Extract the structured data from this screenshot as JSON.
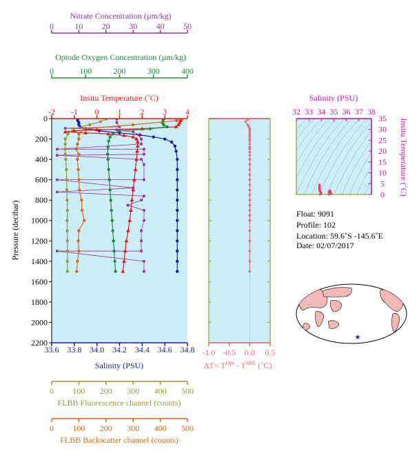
{
  "colors": {
    "nitrate": "#993399",
    "oxygen": "#1a8c3a",
    "temperature": "#ee1111",
    "salinity": "#1a1aaa",
    "fluorescence": "#999933",
    "backscatter": "#dd6611",
    "delta": "#ee6677",
    "ts_axis": "#cc11aa",
    "plot_bg": "#cceef8",
    "map_land": "#f4b8b8",
    "float_marker": "#1a1acc"
  },
  "axes": {
    "nitrate_title": "Nitrate Concentration (µm/kg)",
    "oxygen_title": "Optode Oxygen Concentration (µm/kg)",
    "temperature_title": "Insitu Temperature (˚C)",
    "salinity_title": "Salinity (PSU)",
    "pressure_title": "Pressure (decibar)",
    "fluorescence_title": "FLBB Fluorescence channel (counts)",
    "backscatter_title": "FLBB Backscatter channel (counts)",
    "ts_salinity_title": "Salinity (PSU)",
    "ts_temperature_title": "Insitu Temperature (˚C)",
    "delta_title_prefix": "ΔT= T",
    "delta_sup1": "Opt",
    "delta_mid": " - T",
    "delta_sup2": "SBE",
    "delta_suffix": " (˚C)"
  },
  "info": {
    "float": "Float:  9091",
    "profile": "Profile:  102",
    "location": "Location:  59.6˚S  -145.6˚E",
    "date": "Date:  02/07/2017"
  },
  "chart_data": [
    {
      "type": "line",
      "name": "profile",
      "ylabel": "Pressure (decibar)",
      "ylim": [
        2200,
        0
      ],
      "y_ticks": [
        0,
        200,
        400,
        600,
        800,
        1000,
        1200,
        1400,
        1600,
        1800,
        2000,
        2200
      ],
      "x_axes": {
        "salinity": {
          "range": [
            33.6,
            34.8
          ],
          "ticks": [
            "33.6",
            "33.8",
            "34.0",
            "34.2",
            "34.4",
            "34.6",
            "34.8"
          ]
        },
        "temperature": {
          "range": [
            -2,
            4
          ],
          "ticks": [
            "-2",
            "-1",
            "0",
            "1",
            "2",
            "3",
            "4"
          ]
        },
        "oxygen": {
          "range": [
            0,
            400
          ],
          "ticks": [
            "0",
            "100",
            "200",
            "300",
            "400"
          ]
        },
        "nitrate": {
          "range": [
            0,
            50
          ],
          "ticks": [
            "0",
            "10",
            "20",
            "30",
            "40",
            "50"
          ]
        },
        "fluorescence": {
          "range": [
            0,
            500
          ],
          "ticks": [
            "0",
            "100",
            "200",
            "300",
            "400",
            "500"
          ]
        },
        "backscatter": {
          "range": [
            0,
            500
          ],
          "ticks": [
            "0",
            "100",
            "200",
            "300",
            "400",
            "500"
          ]
        }
      },
      "series": [
        {
          "key": "salinity",
          "axis": "salinity",
          "points": [
            [
              33.83,
              5
            ],
            [
              33.83,
              20
            ],
            [
              33.84,
              40
            ],
            [
              33.84,
              60
            ],
            [
              33.85,
              80
            ],
            [
              33.9,
              100
            ],
            [
              34.02,
              120
            ],
            [
              34.2,
              140
            ],
            [
              34.38,
              160
            ],
            [
              34.5,
              180
            ],
            [
              34.6,
              200
            ],
            [
              34.66,
              230
            ],
            [
              34.69,
              270
            ],
            [
              34.7,
              320
            ],
            [
              34.71,
              400
            ],
            [
              34.71,
              500
            ],
            [
              34.71,
              600
            ],
            [
              34.71,
              700
            ],
            [
              34.71,
              800
            ],
            [
              34.71,
              900
            ],
            [
              34.71,
              1000
            ],
            [
              34.71,
              1100
            ],
            [
              34.71,
              1200
            ],
            [
              34.71,
              1300
            ],
            [
              34.71,
              1400
            ],
            [
              34.71,
              1500
            ]
          ]
        },
        {
          "key": "temperature",
          "axis": "temperature",
          "points": [
            [
              3.7,
              5
            ],
            [
              3.7,
              20
            ],
            [
              3.65,
              40
            ],
            [
              3.6,
              60
            ],
            [
              3.5,
              80
            ],
            [
              2.0,
              100
            ],
            [
              0.0,
              110
            ],
            [
              -1.0,
              120
            ],
            [
              -1.4,
              130
            ],
            [
              -0.5,
              140
            ],
            [
              0.5,
              150
            ],
            [
              1.2,
              165
            ],
            [
              1.6,
              180
            ],
            [
              1.75,
              200
            ],
            [
              1.8,
              230
            ],
            [
              1.8,
              270
            ],
            [
              1.78,
              320
            ],
            [
              1.75,
              400
            ],
            [
              1.7,
              500
            ],
            [
              1.65,
              600
            ],
            [
              1.6,
              700
            ],
            [
              1.55,
              800
            ],
            [
              1.5,
              900
            ],
            [
              1.45,
              1000
            ],
            [
              1.38,
              1100
            ],
            [
              1.3,
              1200
            ],
            [
              1.25,
              1300
            ],
            [
              1.2,
              1400
            ],
            [
              1.15,
              1500
            ]
          ]
        },
        {
          "key": "oxygen",
          "axis": "oxygen",
          "points": [
            [
              330,
              5
            ],
            [
              328,
              20
            ],
            [
              326,
              40
            ],
            [
              330,
              60
            ],
            [
              340,
              80
            ],
            [
              290,
              100
            ],
            [
              200,
              120
            ],
            [
              180,
              150
            ],
            [
              172,
              180
            ],
            [
              168,
              220
            ],
            [
              166,
              280
            ],
            [
              165,
              350
            ],
            [
              166,
              400
            ],
            [
              168,
              500
            ],
            [
              170,
              600
            ],
            [
              172,
              700
            ],
            [
              174,
              800
            ],
            [
              176,
              900
            ],
            [
              178,
              1000
            ],
            [
              180,
              1100
            ],
            [
              182,
              1200
            ],
            [
              184,
              1300
            ],
            [
              186,
              1400
            ],
            [
              188,
              1500
            ]
          ]
        },
        {
          "key": "nitrate",
          "axis": "nitrate",
          "points": [
            [
              24,
              5
            ],
            [
              24,
              40
            ],
            [
              25,
              80
            ],
            [
              5,
              95
            ],
            [
              24,
              110
            ],
            [
              30,
              130
            ],
            [
              32,
              160
            ],
            [
              33,
              200
            ],
            [
              33,
              250
            ],
            [
              2,
              300
            ],
            [
              34,
              300
            ],
            [
              34,
              350
            ],
            [
              2,
              360
            ],
            [
              33,
              400
            ],
            [
              34,
              450
            ],
            [
              34,
              600
            ],
            [
              2,
              600
            ],
            [
              30,
              680
            ],
            [
              2,
              720
            ],
            [
              34,
              760
            ],
            [
              33,
              800
            ],
            [
              28,
              850
            ],
            [
              34,
              900
            ],
            [
              34,
              1000
            ],
            [
              33,
              1100
            ],
            [
              33,
              1200
            ],
            [
              33,
              1300
            ],
            [
              2,
              1300
            ],
            [
              34,
              1400
            ],
            [
              34,
              1500
            ]
          ]
        },
        {
          "key": "fluorescence",
          "axis": "fluorescence",
          "points": [
            [
              200,
              5
            ],
            [
              180,
              30
            ],
            [
              140,
              60
            ],
            [
              80,
              100
            ],
            [
              60,
              150
            ],
            [
              50,
              200
            ],
            [
              50,
              250
            ],
            [
              50,
              300
            ],
            [
              50,
              350
            ],
            [
              52,
              400
            ],
            [
              54,
              500
            ],
            [
              55,
              600
            ],
            [
              56,
              700
            ],
            [
              57,
              800
            ],
            [
              58,
              900
            ],
            [
              57,
              1000
            ],
            [
              57,
              1100
            ],
            [
              58,
              1200
            ],
            [
              58,
              1300
            ],
            [
              58,
              1400
            ],
            [
              58,
              1500
            ]
          ]
        },
        {
          "key": "backscatter",
          "axis": "backscatter",
          "points": [
            [
              480,
              5
            ],
            [
              460,
              20
            ],
            [
              300,
              60
            ],
            [
              120,
              100
            ],
            [
              100,
              150
            ],
            [
              100,
              200
            ],
            [
              95,
              250
            ],
            [
              90,
              300
            ],
            [
              100,
              350
            ],
            [
              95,
              400
            ],
            [
              98,
              500
            ],
            [
              100,
              600
            ],
            [
              102,
              700
            ],
            [
              110,
              800
            ],
            [
              112,
              900
            ],
            [
              120,
              1000
            ],
            [
              100,
              1100
            ],
            [
              98,
              1200
            ],
            [
              100,
              1300
            ],
            [
              95,
              1400
            ],
            [
              92,
              1500
            ]
          ]
        }
      ]
    },
    {
      "type": "scatter",
      "name": "temperature_difference",
      "xlabel": "ΔT= TOpt - TSBE (˚C)",
      "xlim": [
        -1.0,
        0.5
      ],
      "x_ticks": [
        "-1.0",
        "-0.5",
        "0.0",
        "0.5"
      ],
      "ylim": [
        2200,
        0
      ],
      "points": [
        [
          -0.05,
          10
        ],
        [
          -0.1,
          30
        ],
        [
          -0.05,
          60
        ],
        [
          -0.02,
          80
        ],
        [
          0.0,
          100
        ],
        [
          0.0,
          120
        ],
        [
          0.0,
          140
        ],
        [
          0.0,
          160
        ],
        [
          0.0,
          180
        ],
        [
          0.0,
          200
        ],
        [
          0.0,
          220
        ],
        [
          0.0,
          250
        ],
        [
          0.0,
          280
        ],
        [
          0.0,
          300
        ],
        [
          0.0,
          330
        ],
        [
          0.0,
          360
        ],
        [
          0.0,
          400
        ],
        [
          0.0,
          450
        ],
        [
          0.0,
          500
        ],
        [
          0.0,
          550
        ],
        [
          0.0,
          600
        ],
        [
          0.0,
          650
        ],
        [
          0.0,
          700
        ],
        [
          0.0,
          750
        ],
        [
          0.0,
          800
        ],
        [
          0.0,
          850
        ],
        [
          0.0,
          900
        ],
        [
          0.0,
          950
        ],
        [
          0.0,
          1000
        ],
        [
          0.0,
          1100
        ],
        [
          0.0,
          1200
        ],
        [
          0.0,
          1300
        ],
        [
          0.0,
          1400
        ],
        [
          0.0,
          1500
        ]
      ]
    },
    {
      "type": "scatter",
      "name": "ts_diagram",
      "xlabel": "Salinity (PSU)",
      "ylabel": "Insitu Temperature (˚C)",
      "xlim": [
        32,
        38
      ],
      "ylim": [
        0,
        35
      ],
      "x_ticks": [
        "32",
        "33",
        "34",
        "35",
        "36",
        "37",
        "38"
      ],
      "y_ticks": [
        "0",
        "5",
        "10",
        "15",
        "20",
        "25",
        "30",
        "35"
      ],
      "points": [
        [
          33.85,
          4.5
        ],
        [
          33.85,
          4.0
        ],
        [
          33.84,
          3.5
        ],
        [
          33.85,
          3.0
        ],
        [
          33.86,
          2.5
        ],
        [
          33.85,
          2.0
        ],
        [
          33.9,
          1.5
        ],
        [
          33.95,
          1.0
        ],
        [
          34.0,
          0.5
        ],
        [
          33.9,
          0.0
        ],
        [
          34.6,
          1.2
        ],
        [
          34.65,
          1.0
        ],
        [
          34.7,
          1.8
        ],
        [
          34.7,
          1.5
        ],
        [
          34.7,
          1.2
        ],
        [
          34.72,
          0.8
        ],
        [
          34.75,
          0.5
        ],
        [
          34.8,
          0.2
        ],
        [
          34.6,
          0.0
        ]
      ]
    }
  ],
  "map": {
    "marker": "★"
  }
}
